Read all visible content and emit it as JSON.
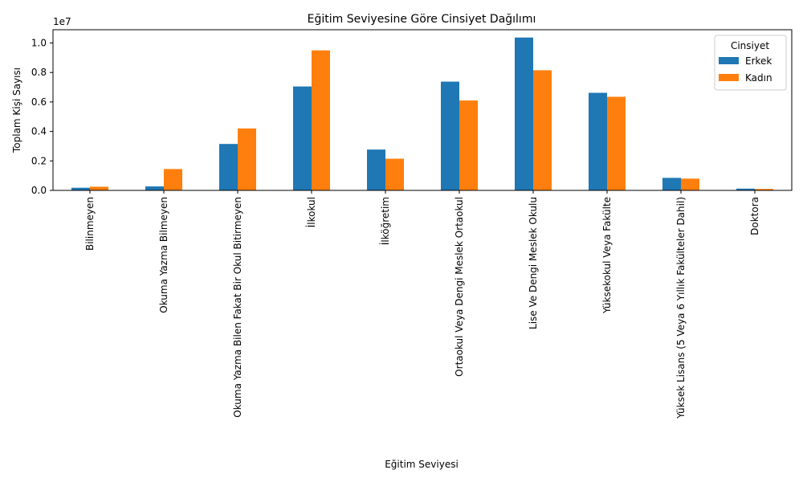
{
  "chart_data": {
    "type": "bar",
    "title": "Eğitim Seviyesine Göre Cinsiyet Dağılımı",
    "xlabel": "Eğitim Seviyesi",
    "ylabel": "Toplam Kişi Sayısı",
    "y_offset_label": "1e7",
    "y_scale": 10000000,
    "ylim": [
      0,
      1.09
    ],
    "y_ticks": [
      0.0,
      0.2,
      0.4,
      0.6,
      0.8,
      1.0
    ],
    "y_tick_labels": [
      "0.0",
      "0.2",
      "0.4",
      "0.6",
      "0.8",
      "1.0"
    ],
    "grid": false,
    "legend": {
      "title": "Cinsiyet",
      "placement": "top-right"
    },
    "categories": [
      "Bilinmeyen",
      "Okuma Yazma Bilmeyen",
      "Okuma Yazma Bilen Fakat Bir Okul Bitirmeyen",
      "İlkokul",
      "İlköğretim",
      "Ortaokul Veya Dengi Meslek Ortaokul",
      "Lise Ve Dengi Meslek Okulu",
      "Yüksekokul Veya Fakülte",
      "Yüksek Lisans (5 Veya 6 Yıllık Fakülteler Dahil)",
      "Doktora"
    ],
    "series": [
      {
        "name": "Erkek",
        "color": "#1f77b4",
        "values": [
          0.018,
          0.027,
          0.315,
          0.705,
          0.277,
          0.738,
          1.037,
          0.662,
          0.085,
          0.012
        ]
      },
      {
        "name": "Kadın",
        "color": "#ff7f0e",
        "values": [
          0.025,
          0.145,
          0.42,
          0.95,
          0.215,
          0.61,
          0.815,
          0.635,
          0.08,
          0.01
        ]
      }
    ]
  }
}
